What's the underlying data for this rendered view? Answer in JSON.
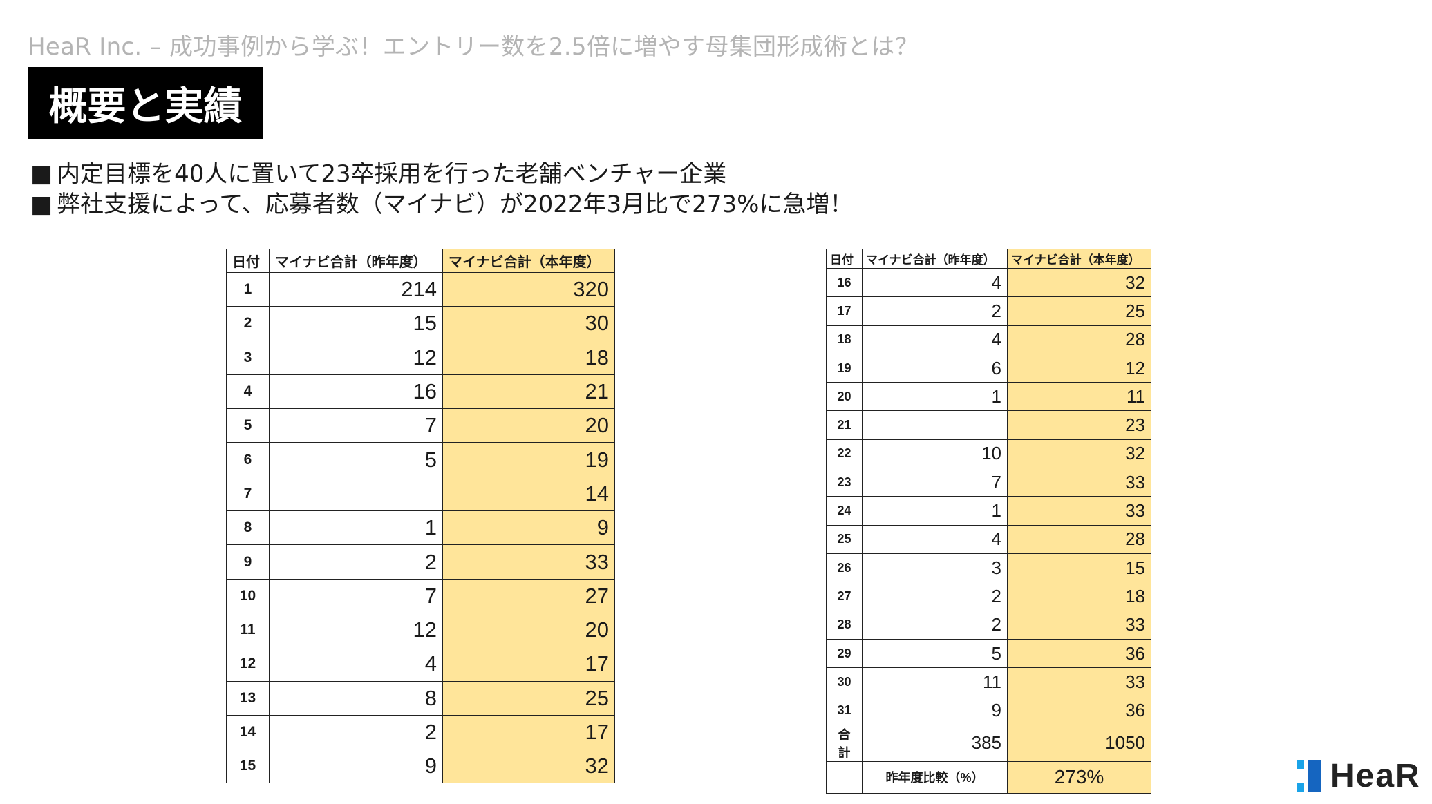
{
  "header": {
    "subtitle": "HeaR Inc. – 成功事例から学ぶ！エントリー数を2.5倍に増やす母集団形成術とは？",
    "title": "概要と実績"
  },
  "bullets": [
    {
      "mark": "■",
      "text": "内定目標を40人に置いて23卒採用を行った老舗ベンチャー企業"
    },
    {
      "mark": "■",
      "text": "弊社支援によって、応募者数（マイナビ）が2022年3月比で273%に急増！"
    }
  ],
  "table_left": {
    "headers": [
      "日付",
      "マイナビ合計（昨年度）",
      "マイナビ合計（本年度）"
    ],
    "rows": [
      {
        "day": "1",
        "prev": "214",
        "curr": "320"
      },
      {
        "day": "2",
        "prev": "15",
        "curr": "30"
      },
      {
        "day": "3",
        "prev": "12",
        "curr": "18"
      },
      {
        "day": "4",
        "prev": "16",
        "curr": "21"
      },
      {
        "day": "5",
        "prev": "7",
        "curr": "20"
      },
      {
        "day": "6",
        "prev": "5",
        "curr": "19"
      },
      {
        "day": "7",
        "prev": "",
        "curr": "14"
      },
      {
        "day": "8",
        "prev": "1",
        "curr": "9"
      },
      {
        "day": "9",
        "prev": "2",
        "curr": "33"
      },
      {
        "day": "10",
        "prev": "7",
        "curr": "27"
      },
      {
        "day": "11",
        "prev": "12",
        "curr": "20"
      },
      {
        "day": "12",
        "prev": "4",
        "curr": "17"
      },
      {
        "day": "13",
        "prev": "8",
        "curr": "25"
      },
      {
        "day": "14",
        "prev": "2",
        "curr": "17"
      },
      {
        "day": "15",
        "prev": "9",
        "curr": "32"
      }
    ]
  },
  "table_right": {
    "headers": [
      "日付",
      "マイナビ合計（昨年度）",
      "マイナビ合計（本年度）"
    ],
    "rows": [
      {
        "day": "16",
        "prev": "4",
        "curr": "32"
      },
      {
        "day": "17",
        "prev": "2",
        "curr": "25"
      },
      {
        "day": "18",
        "prev": "4",
        "curr": "28"
      },
      {
        "day": "19",
        "prev": "6",
        "curr": "12"
      },
      {
        "day": "20",
        "prev": "1",
        "curr": "11"
      },
      {
        "day": "21",
        "prev": "",
        "curr": "23"
      },
      {
        "day": "22",
        "prev": "10",
        "curr": "32"
      },
      {
        "day": "23",
        "prev": "7",
        "curr": "33"
      },
      {
        "day": "24",
        "prev": "1",
        "curr": "33"
      },
      {
        "day": "25",
        "prev": "4",
        "curr": "28"
      },
      {
        "day": "26",
        "prev": "3",
        "curr": "15"
      },
      {
        "day": "27",
        "prev": "2",
        "curr": "18"
      },
      {
        "day": "28",
        "prev": "2",
        "curr": "33"
      },
      {
        "day": "29",
        "prev": "5",
        "curr": "36"
      },
      {
        "day": "30",
        "prev": "11",
        "curr": "33"
      },
      {
        "day": "31",
        "prev": "9",
        "curr": "36"
      }
    ],
    "total": {
      "label": "合計",
      "prev": "385",
      "curr": "1050"
    },
    "ratio": {
      "label": "昨年度比較（%）",
      "value": "273%"
    }
  },
  "logo": {
    "text": "HeaR",
    "colors": [
      "#1aa3e8",
      "#1565c0"
    ]
  },
  "colors": {
    "highlight": "#ffe59a",
    "title_bg": "#000000",
    "subtitle": "#b4b4b4"
  }
}
